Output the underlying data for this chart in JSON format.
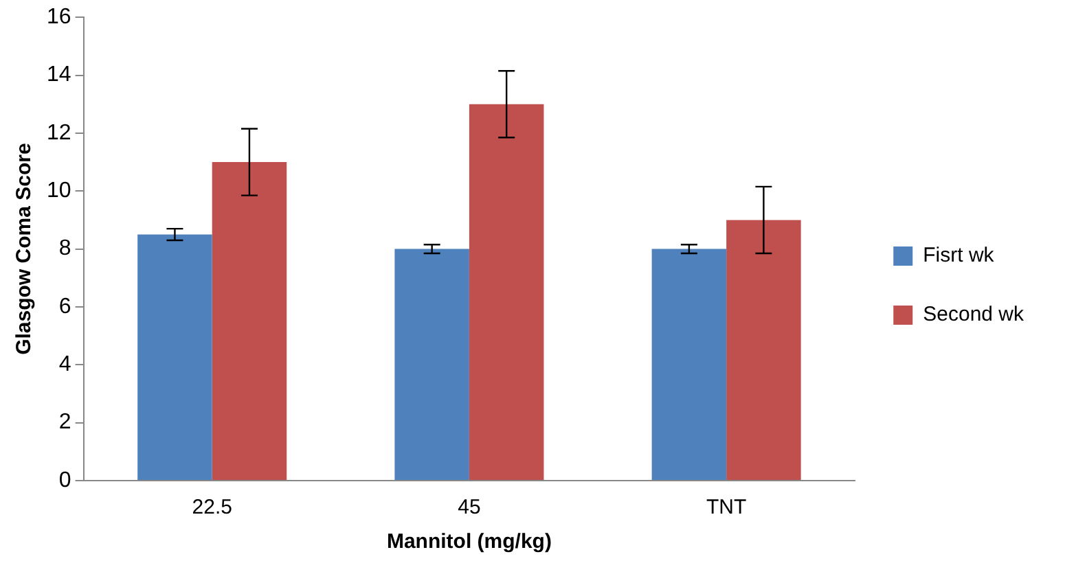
{
  "chart_data": {
    "type": "bar",
    "xlabel": "Mannitol (mg/kg)",
    "ylabel": "Glasgow Coma Score",
    "categories": [
      "22.5",
      "45",
      "TNT"
    ],
    "series": [
      {
        "name": "Fisrt wk",
        "color": "#4f81bd",
        "values": [
          8.5,
          8,
          8
        ],
        "errors": [
          0.2,
          0.15,
          0.15
        ]
      },
      {
        "name": "Second wk",
        "color": "#c0504d",
        "values": [
          11,
          13,
          9
        ],
        "errors": [
          1.15,
          1.15,
          1.15
        ]
      }
    ],
    "ylim": [
      0,
      16
    ],
    "yticks": [
      0,
      2,
      4,
      6,
      8,
      10,
      12,
      14,
      16
    ],
    "grid": false,
    "legend": "right"
  }
}
